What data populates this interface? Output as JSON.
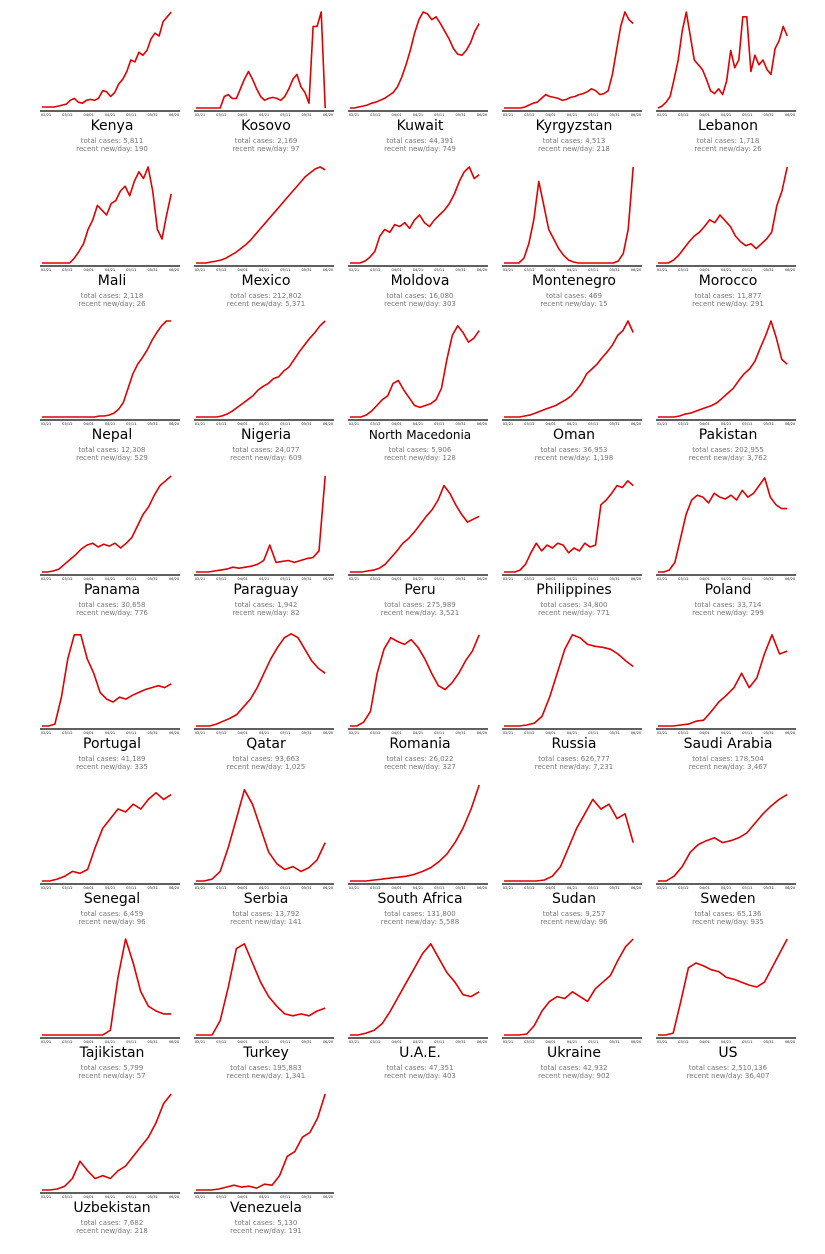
{
  "chart_data": {
    "type": "line",
    "layout": "small-multiples grid, 5 columns",
    "line_color": "#dd0000",
    "x_ticks": [
      "02/21",
      "03/12",
      "04/01",
      "04/21",
      "05/11",
      "05/31",
      "06/20"
    ],
    "stat_labels": {
      "total": "total cases: ",
      "recent": "recent new/day: "
    },
    "panels": [
      {
        "title": "Kenya",
        "total_cases": "5,811",
        "recent_new_per_day": "190",
        "series": [
          0.01,
          0.01,
          0.01,
          0.01,
          0.02,
          0.03,
          0.04,
          0.08,
          0.1,
          0.06,
          0.05,
          0.08,
          0.09,
          0.08,
          0.1,
          0.18,
          0.17,
          0.12,
          0.16,
          0.25,
          0.3,
          0.38,
          0.5,
          0.48,
          0.58,
          0.55,
          0.6,
          0.72,
          0.78,
          0.75,
          0.9,
          0.95,
          1.0
        ]
      },
      {
        "title": "Kosovo",
        "total_cases": "2,169",
        "recent_new_per_day": "97",
        "series": [
          0,
          0,
          0,
          0,
          0,
          0,
          0,
          0.12,
          0.14,
          0.1,
          0.1,
          0.2,
          0.3,
          0.38,
          0.3,
          0.2,
          0.12,
          0.08,
          0.1,
          0.11,
          0.1,
          0.08,
          0.12,
          0.2,
          0.3,
          0.35,
          0.22,
          0.16,
          0.05,
          0.85,
          0.85,
          1.0,
          0.0
        ]
      },
      {
        "title": "Kuwait",
        "total_cases": "44,391",
        "recent_new_per_day": "749",
        "series": [
          0,
          0,
          0.01,
          0.02,
          0.03,
          0.05,
          0.06,
          0.08,
          0.1,
          0.13,
          0.16,
          0.22,
          0.32,
          0.45,
          0.6,
          0.78,
          0.92,
          1.0,
          0.98,
          0.92,
          0.95,
          0.88,
          0.8,
          0.72,
          0.62,
          0.56,
          0.55,
          0.6,
          0.68,
          0.8,
          0.88
        ]
      },
      {
        "title": "Kyrgyzstan",
        "total_cases": "4,513",
        "recent_new_per_day": "218",
        "series": [
          0,
          0,
          0,
          0,
          0,
          0.01,
          0.03,
          0.05,
          0.06,
          0.1,
          0.14,
          0.12,
          0.11,
          0.1,
          0.08,
          0.09,
          0.11,
          0.12,
          0.14,
          0.15,
          0.17,
          0.2,
          0.18,
          0.14,
          0.15,
          0.18,
          0.35,
          0.6,
          0.85,
          1.0,
          0.92,
          0.88
        ]
      },
      {
        "title": "Lebanon",
        "total_cases": "1,718",
        "recent_new_per_day": "26",
        "series": [
          0,
          0.02,
          0.06,
          0.12,
          0.3,
          0.5,
          0.8,
          1.0,
          0.75,
          0.5,
          0.45,
          0.4,
          0.3,
          0.18,
          0.15,
          0.2,
          0.14,
          0.28,
          0.6,
          0.42,
          0.5,
          0.95,
          0.95,
          0.38,
          0.55,
          0.45,
          0.5,
          0.4,
          0.35,
          0.62,
          0.7,
          0.85,
          0.75
        ]
      },
      {
        "title": "Mali",
        "total_cases": "2,118",
        "recent_new_per_day": "26",
        "series": [
          0,
          0,
          0,
          0,
          0,
          0,
          0,
          0.05,
          0.12,
          0.2,
          0.35,
          0.45,
          0.6,
          0.55,
          0.5,
          0.62,
          0.65,
          0.75,
          0.8,
          0.7,
          0.85,
          0.95,
          0.88,
          1.0,
          0.75,
          0.35,
          0.25,
          0.5,
          0.72
        ]
      },
      {
        "title": "Mexico",
        "total_cases": "212,802",
        "recent_new_per_day": "5,371",
        "series": [
          0,
          0,
          0,
          0.01,
          0.02,
          0.03,
          0.05,
          0.08,
          0.11,
          0.15,
          0.19,
          0.24,
          0.3,
          0.36,
          0.42,
          0.48,
          0.54,
          0.6,
          0.66,
          0.72,
          0.78,
          0.84,
          0.9,
          0.94,
          0.98,
          1.0,
          0.97
        ]
      },
      {
        "title": "Moldova",
        "total_cases": "16,080",
        "recent_new_per_day": "303",
        "series": [
          0,
          0,
          0,
          0.02,
          0.06,
          0.12,
          0.28,
          0.35,
          0.32,
          0.4,
          0.38,
          0.42,
          0.36,
          0.45,
          0.5,
          0.42,
          0.38,
          0.45,
          0.5,
          0.55,
          0.62,
          0.72,
          0.85,
          0.95,
          1.0,
          0.88,
          0.92
        ]
      },
      {
        "title": "Montenegro",
        "total_cases": "469",
        "recent_new_per_day": "15",
        "series": [
          0,
          0,
          0,
          0,
          0.05,
          0.2,
          0.45,
          0.85,
          0.6,
          0.35,
          0.25,
          0.15,
          0.08,
          0.03,
          0.01,
          0,
          0,
          0,
          0,
          0,
          0,
          0,
          0,
          0.02,
          0.1,
          0.35,
          1.0
        ]
      },
      {
        "title": "Morocco",
        "total_cases": "11,877",
        "recent_new_per_day": "291",
        "series": [
          0,
          0,
          0,
          0.03,
          0.08,
          0.15,
          0.22,
          0.28,
          0.32,
          0.38,
          0.45,
          0.42,
          0.5,
          0.44,
          0.38,
          0.28,
          0.22,
          0.18,
          0.2,
          0.15,
          0.2,
          0.25,
          0.32,
          0.6,
          0.75,
          1.0
        ]
      },
      {
        "title": "Nepal",
        "total_cases": "12,308",
        "recent_new_per_day": "529",
        "series": [
          0,
          0,
          0,
          0,
          0,
          0,
          0,
          0,
          0,
          0,
          0,
          0,
          0.01,
          0.01,
          0.02,
          0.04,
          0.08,
          0.15,
          0.3,
          0.45,
          0.55,
          0.62,
          0.7,
          0.8,
          0.88,
          0.95,
          1.0,
          1.0
        ]
      },
      {
        "title": "Nigeria",
        "total_cases": "24,077",
        "recent_new_per_day": "609",
        "series": [
          0,
          0,
          0,
          0,
          0,
          0.01,
          0.03,
          0.06,
          0.1,
          0.14,
          0.18,
          0.22,
          0.28,
          0.32,
          0.35,
          0.4,
          0.42,
          0.48,
          0.52,
          0.6,
          0.68,
          0.75,
          0.82,
          0.88,
          0.95,
          1.0
        ]
      },
      {
        "title": "North Macedonia",
        "total_cases": "5,906",
        "recent_new_per_day": "128",
        "series": [
          0,
          0,
          0,
          0.02,
          0.06,
          0.12,
          0.18,
          0.22,
          0.35,
          0.38,
          0.28,
          0.2,
          0.12,
          0.1,
          0.12,
          0.14,
          0.18,
          0.3,
          0.6,
          0.85,
          0.95,
          0.88,
          0.78,
          0.82,
          0.9
        ]
      },
      {
        "title": "Oman",
        "total_cases": "36,953",
        "recent_new_per_day": "1,198",
        "series": [
          0,
          0,
          0,
          0,
          0.01,
          0.02,
          0.04,
          0.06,
          0.08,
          0.1,
          0.12,
          0.15,
          0.18,
          0.22,
          0.28,
          0.35,
          0.45,
          0.5,
          0.55,
          0.62,
          0.68,
          0.75,
          0.85,
          0.9,
          1.0,
          0.88
        ]
      },
      {
        "title": "Pakistan",
        "total_cases": "202,955",
        "recent_new_per_day": "3,762",
        "series": [
          0,
          0,
          0,
          0,
          0.01,
          0.03,
          0.04,
          0.06,
          0.08,
          0.1,
          0.12,
          0.15,
          0.2,
          0.25,
          0.3,
          0.38,
          0.45,
          0.5,
          0.58,
          0.72,
          0.85,
          1.0,
          0.82,
          0.6,
          0.55
        ]
      },
      {
        "title": "Panama",
        "total_cases": "30,658",
        "recent_new_per_day": "776",
        "series": [
          0,
          0,
          0.01,
          0.03,
          0.08,
          0.13,
          0.18,
          0.24,
          0.28,
          0.3,
          0.26,
          0.29,
          0.27,
          0.3,
          0.25,
          0.3,
          0.36,
          0.48,
          0.6,
          0.68,
          0.8,
          0.9,
          0.95,
          1.0
        ]
      },
      {
        "title": "Paraguay",
        "total_cases": "1,942",
        "recent_new_per_day": "82",
        "series": [
          0,
          0,
          0,
          0.01,
          0.02,
          0.03,
          0.05,
          0.04,
          0.05,
          0.06,
          0.08,
          0.12,
          0.28,
          0.1,
          0.11,
          0.12,
          0.1,
          0.12,
          0.14,
          0.15,
          0.22,
          1.0
        ]
      },
      {
        "title": "Peru",
        "total_cases": "275,989",
        "recent_new_per_day": "3,521",
        "series": [
          0,
          0,
          0,
          0.01,
          0.02,
          0.04,
          0.08,
          0.15,
          0.22,
          0.3,
          0.35,
          0.42,
          0.5,
          0.58,
          0.65,
          0.75,
          0.9,
          0.82,
          0.7,
          0.6,
          0.52,
          0.55,
          0.58
        ]
      },
      {
        "title": "Philippines",
        "total_cases": "34,800",
        "recent_new_per_day": "771",
        "series": [
          0,
          0,
          0,
          0.02,
          0.08,
          0.2,
          0.3,
          0.22,
          0.28,
          0.25,
          0.3,
          0.28,
          0.2,
          0.25,
          0.22,
          0.3,
          0.26,
          0.28,
          0.7,
          0.75,
          0.82,
          0.9,
          0.88,
          0.95,
          0.9
        ]
      },
      {
        "title": "Poland",
        "total_cases": "33,714",
        "recent_new_per_day": "299",
        "series": [
          0,
          0,
          0.02,
          0.1,
          0.35,
          0.6,
          0.75,
          0.8,
          0.78,
          0.72,
          0.82,
          0.78,
          0.76,
          0.8,
          0.75,
          0.85,
          0.78,
          0.82,
          0.9,
          0.98,
          0.78,
          0.7,
          0.66,
          0.66
        ]
      },
      {
        "title": "Portugal",
        "total_cases": "41,189",
        "recent_new_per_day": "335",
        "series": [
          0,
          0,
          0.02,
          0.3,
          0.7,
          0.95,
          0.95,
          0.7,
          0.55,
          0.35,
          0.28,
          0.25,
          0.3,
          0.28,
          0.32,
          0.35,
          0.38,
          0.4,
          0.42,
          0.4,
          0.44
        ]
      },
      {
        "title": "Qatar",
        "total_cases": "93,663",
        "recent_new_per_day": "1,025",
        "series": [
          0,
          0,
          0,
          0.02,
          0.05,
          0.08,
          0.12,
          0.2,
          0.28,
          0.4,
          0.55,
          0.7,
          0.82,
          0.92,
          0.96,
          0.92,
          0.8,
          0.68,
          0.6,
          0.55
        ]
      },
      {
        "title": "Romania",
        "total_cases": "26,022",
        "recent_new_per_day": "327",
        "series": [
          0,
          0,
          0.04,
          0.15,
          0.55,
          0.8,
          0.92,
          0.88,
          0.85,
          0.9,
          0.82,
          0.7,
          0.55,
          0.42,
          0.38,
          0.45,
          0.55,
          0.68,
          0.78,
          0.95
        ]
      },
      {
        "title": "Russia",
        "total_cases": "626,777",
        "recent_new_per_day": "7,231",
        "series": [
          0,
          0,
          0,
          0.01,
          0.03,
          0.1,
          0.3,
          0.55,
          0.8,
          0.95,
          0.92,
          0.85,
          0.83,
          0.82,
          0.8,
          0.75,
          0.68,
          0.62
        ]
      },
      {
        "title": "Saudi Arabia",
        "total_cases": "178,504",
        "recent_new_per_day": "3,467",
        "series": [
          0,
          0,
          0,
          0.01,
          0.02,
          0.05,
          0.06,
          0.15,
          0.25,
          0.32,
          0.4,
          0.55,
          0.4,
          0.5,
          0.75,
          0.95,
          0.75,
          0.78
        ]
      },
      {
        "title": "Senegal",
        "total_cases": "6,459",
        "recent_new_per_day": "96",
        "series": [
          0,
          0,
          0.02,
          0.05,
          0.1,
          0.08,
          0.12,
          0.35,
          0.55,
          0.65,
          0.75,
          0.72,
          0.8,
          0.75,
          0.85,
          0.92,
          0.85,
          0.9
        ]
      },
      {
        "title": "Serbia",
        "total_cases": "13,792",
        "recent_new_per_day": "141",
        "series": [
          0,
          0,
          0.02,
          0.1,
          0.35,
          0.65,
          0.95,
          0.8,
          0.55,
          0.3,
          0.18,
          0.12,
          0.15,
          0.1,
          0.14,
          0.22,
          0.4
        ]
      },
      {
        "title": "South Africa",
        "total_cases": "131,800",
        "recent_new_per_day": "5,588",
        "series": [
          0,
          0,
          0,
          0.01,
          0.02,
          0.03,
          0.04,
          0.05,
          0.07,
          0.1,
          0.14,
          0.2,
          0.28,
          0.4,
          0.55,
          0.75,
          1.0
        ]
      },
      {
        "title": "Sudan",
        "total_cases": "9,257",
        "recent_new_per_day": "96",
        "series": [
          0,
          0,
          0,
          0,
          0,
          0.01,
          0.05,
          0.15,
          0.35,
          0.55,
          0.7,
          0.85,
          0.75,
          0.8,
          0.65,
          0.7,
          0.4
        ]
      },
      {
        "title": "Sweden",
        "total_cases": "65,136",
        "recent_new_per_day": "935",
        "series": [
          0,
          0,
          0.05,
          0.15,
          0.3,
          0.38,
          0.42,
          0.45,
          0.4,
          0.42,
          0.45,
          0.5,
          0.6,
          0.7,
          0.78,
          0.85,
          0.9
        ]
      },
      {
        "title": "Tajikistan",
        "total_cases": "5,799",
        "recent_new_per_day": "57",
        "series": [
          0,
          0,
          0,
          0,
          0,
          0,
          0,
          0,
          0,
          0.05,
          0.6,
          1.0,
          0.75,
          0.45,
          0.3,
          0.25,
          0.22,
          0.22
        ]
      },
      {
        "title": "Turkey",
        "total_cases": "195,883",
        "recent_new_per_day": "1,341",
        "series": [
          0,
          0,
          0,
          0.15,
          0.5,
          0.9,
          0.95,
          0.75,
          0.55,
          0.4,
          0.3,
          0.22,
          0.2,
          0.22,
          0.2,
          0.25,
          0.28
        ]
      },
      {
        "title": "U.A.E.",
        "total_cases": "47,351",
        "recent_new_per_day": "403",
        "series": [
          0,
          0,
          0.02,
          0.05,
          0.12,
          0.25,
          0.4,
          0.55,
          0.7,
          0.85,
          0.95,
          0.8,
          0.65,
          0.55,
          0.42,
          0.4,
          0.45
        ]
      },
      {
        "title": "Ukraine",
        "total_cases": "42,932",
        "recent_new_per_day": "902",
        "series": [
          0,
          0,
          0,
          0.01,
          0.1,
          0.25,
          0.35,
          0.4,
          0.38,
          0.45,
          0.4,
          0.35,
          0.48,
          0.55,
          0.62,
          0.78,
          0.92,
          1.0
        ]
      },
      {
        "title": "US",
        "total_cases": "2,510,136",
        "recent_new_per_day": "36,407",
        "series": [
          0,
          0,
          0.02,
          0.35,
          0.7,
          0.75,
          0.72,
          0.68,
          0.66,
          0.6,
          0.58,
          0.55,
          0.52,
          0.5,
          0.55,
          0.7,
          0.85,
          1.0
        ]
      },
      {
        "title": "Uzbekistan",
        "total_cases": "7,682",
        "recent_new_per_day": "218",
        "series": [
          0,
          0,
          0.01,
          0.04,
          0.12,
          0.3,
          0.2,
          0.12,
          0.15,
          0.12,
          0.2,
          0.25,
          0.35,
          0.45,
          0.55,
          0.7,
          0.9,
          1.0
        ]
      },
      {
        "title": "Venezuela",
        "total_cases": "5,130",
        "recent_new_per_day": "191",
        "series": [
          0,
          0,
          0,
          0.01,
          0.03,
          0.05,
          0.03,
          0.04,
          0.02,
          0.06,
          0.05,
          0.15,
          0.35,
          0.4,
          0.55,
          0.6,
          0.75,
          1.0
        ]
      }
    ]
  }
}
